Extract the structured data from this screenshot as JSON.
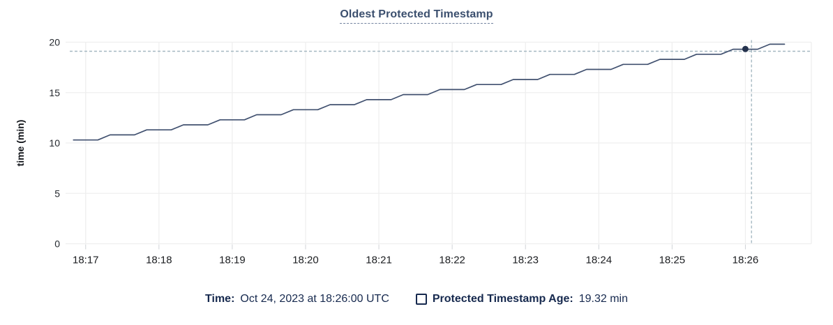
{
  "title": "Oldest Protected Timestamp",
  "colors": {
    "title": "#3b4f6e",
    "line": "#40506f",
    "dot": "#24324d",
    "crosshair": "#a5b8c1",
    "grid": "#efefef",
    "tick_mark": "#d0d3d7",
    "footer_text": "#16294e"
  },
  "footer": {
    "time_label": "Time:",
    "time_value": "Oct 24, 2023 at 18:26:00 UTC",
    "series_label": "Protected Timestamp Age:",
    "series_value": "19.32 min"
  },
  "chart_data": {
    "type": "line",
    "title": "Oldest Protected Timestamp",
    "xlabel": "",
    "ylabel": "time (min)",
    "ylim": [
      0,
      20
    ],
    "y_ticks": [
      0,
      5,
      10,
      15,
      20
    ],
    "grid": true,
    "legend_position": "bottom",
    "x_ticks": [
      {
        "t": 0,
        "label": "18:17"
      },
      {
        "t": 60,
        "label": "18:18"
      },
      {
        "t": 120,
        "label": "18:19"
      },
      {
        "t": 180,
        "label": "18:20"
      },
      {
        "t": 240,
        "label": "18:21"
      },
      {
        "t": 300,
        "label": "18:22"
      },
      {
        "t": 360,
        "label": "18:23"
      },
      {
        "t": 420,
        "label": "18:24"
      },
      {
        "t": 480,
        "label": "18:25"
      },
      {
        "t": 540,
        "label": "18:26"
      }
    ],
    "series": [
      {
        "name": "Protected Timestamp Age",
        "unit": "min",
        "points": [
          [
            -10,
            10.3
          ],
          [
            10,
            10.3
          ],
          [
            20,
            10.8
          ],
          [
            40,
            10.8
          ],
          [
            50,
            11.3
          ],
          [
            70,
            11.3
          ],
          [
            80,
            11.8
          ],
          [
            100,
            11.8
          ],
          [
            110,
            12.3
          ],
          [
            130,
            12.3
          ],
          [
            140,
            12.8
          ],
          [
            160,
            12.8
          ],
          [
            170,
            13.3
          ],
          [
            190,
            13.3
          ],
          [
            200,
            13.8
          ],
          [
            220,
            13.8
          ],
          [
            230,
            14.3
          ],
          [
            250,
            14.3
          ],
          [
            260,
            14.8
          ],
          [
            280,
            14.8
          ],
          [
            290,
            15.3
          ],
          [
            310,
            15.3
          ],
          [
            320,
            15.8
          ],
          [
            340,
            15.8
          ],
          [
            350,
            16.3
          ],
          [
            370,
            16.3
          ],
          [
            380,
            16.8
          ],
          [
            400,
            16.8
          ],
          [
            410,
            17.3
          ],
          [
            430,
            17.3
          ],
          [
            440,
            17.8
          ],
          [
            460,
            17.8
          ],
          [
            470,
            18.3
          ],
          [
            490,
            18.3
          ],
          [
            500,
            18.8
          ],
          [
            520,
            18.8
          ],
          [
            530,
            19.3
          ],
          [
            550,
            19.3
          ],
          [
            560,
            19.8
          ],
          [
            572,
            19.8
          ]
        ]
      }
    ],
    "hover": {
      "cursor_t": 545,
      "cursor_value": 19.1,
      "point_t": 540,
      "point_value": 19.32,
      "point_time_text": "18:26:00",
      "point_value_text": "19.32 min"
    }
  }
}
